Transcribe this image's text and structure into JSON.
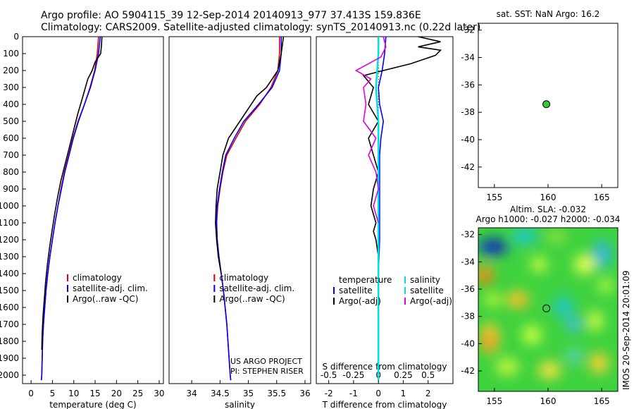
{
  "header": {
    "line1": "Argo profile: AO 5904115_39 12-Sep-2014 20140913_977 37.413S 159.836E",
    "line2": "Climatology: CARS2009. Satellite-adjusted climatology: synTS_20140913.nc (0.22d later)"
  },
  "colors": {
    "climatology": "#e00000",
    "satellite": "#0000ff",
    "argo": "#000000",
    "sal_satellite": "#00e0e0",
    "sal_argo": "#e000e0",
    "marker": "#33cc33"
  },
  "chart_data": [
    {
      "type": "line",
      "name": "temperature-panel",
      "xlabel": "temperature (deg C)",
      "ylabel": "",
      "xlim": [
        -2,
        31
      ],
      "ylim": [
        2050,
        0
      ],
      "xticks": [
        0,
        5,
        10,
        15,
        20,
        25,
        30
      ],
      "yticks": [
        0,
        100,
        200,
        300,
        400,
        500,
        600,
        700,
        800,
        900,
        1000,
        1100,
        1200,
        1300,
        1400,
        1500,
        1600,
        1700,
        1800,
        1900,
        2000
      ],
      "legend": [
        "climatology",
        "satellite-adj. clim.",
        "Argo(..raw -QC)"
      ],
      "series": [
        {
          "name": "climatology",
          "x": [
            15.8,
            15.5,
            14.9,
            13.8,
            12.5,
            11.0,
            9.8,
            8.8,
            7.8,
            7.0,
            6.3,
            5.6,
            5.0,
            4.4,
            3.9,
            3.5,
            3.2,
            2.9,
            2.7,
            2.6,
            2.5,
            2.4
          ],
          "y": [
            0,
            100,
            200,
            300,
            400,
            500,
            600,
            700,
            800,
            900,
            1000,
            1100,
            1200,
            1300,
            1400,
            1500,
            1600,
            1700,
            1800,
            1900,
            2000,
            2030
          ]
        },
        {
          "name": "satellite-adj. clim.",
          "x": [
            16.2,
            15.8,
            15.0,
            13.9,
            12.5,
            11.1,
            9.9,
            8.9,
            7.9,
            7.1,
            6.3,
            5.6,
            5.0,
            4.4,
            3.9,
            3.5,
            3.2,
            2.9,
            2.7,
            2.6,
            2.5,
            2.4
          ],
          "y": [
            0,
            100,
            200,
            300,
            400,
            500,
            600,
            700,
            800,
            900,
            1000,
            1100,
            1200,
            1300,
            1400,
            1500,
            1600,
            1700,
            1800,
            1900,
            2000,
            2030
          ]
        },
        {
          "name": "Argo(..raw -QC)",
          "x": [
            16.6,
            16.5,
            16.3,
            15.0,
            14.3,
            13.3,
            11.6,
            11.0,
            10.0,
            9.0,
            8.0,
            7.0,
            6.2,
            5.5,
            4.9,
            4.3,
            3.8,
            3.4,
            3.1,
            2.8,
            2.6,
            2.5
          ],
          "y": [
            0,
            50,
            100,
            150,
            200,
            250,
            400,
            450,
            550,
            650,
            750,
            850,
            950,
            1050,
            1150,
            1250,
            1350,
            1450,
            1550,
            1650,
            1750,
            1850
          ]
        }
      ]
    },
    {
      "type": "line",
      "name": "salinity-panel",
      "xlabel": "salinity",
      "xlim": [
        33.6,
        36.1
      ],
      "ylim": [
        2050,
        0
      ],
      "xticks": [
        34,
        34.5,
        35,
        35.5,
        36
      ],
      "xticklabels": [
        "34",
        "34.5",
        "35",
        "35.5",
        "36"
      ],
      "legend": [
        "climatology",
        "satellite-adj. clim.",
        "Argo(..raw -QC)"
      ],
      "annotation": [
        "US ARGO PROJECT",
        "PI: STEPHEN RISER"
      ],
      "series": [
        {
          "name": "climatology",
          "x": [
            35.55,
            35.55,
            35.52,
            35.4,
            35.2,
            34.95,
            34.78,
            34.62,
            34.55,
            34.5,
            34.46,
            34.44,
            34.45,
            34.48,
            34.52,
            34.56,
            34.59,
            34.62,
            34.64,
            34.66,
            34.68,
            34.69
          ],
          "y": [
            0,
            100,
            200,
            300,
            400,
            500,
            600,
            700,
            800,
            900,
            1000,
            1100,
            1200,
            1300,
            1400,
            1500,
            1600,
            1700,
            1800,
            1900,
            2000,
            2030
          ]
        },
        {
          "name": "satellite-adj. clim.",
          "x": [
            35.58,
            35.58,
            35.55,
            35.42,
            35.18,
            34.92,
            34.75,
            34.6,
            34.54,
            34.49,
            34.45,
            34.44,
            34.45,
            34.48,
            34.52,
            34.56,
            34.59,
            34.62,
            34.64,
            34.66,
            34.68,
            34.69
          ],
          "y": [
            0,
            100,
            200,
            300,
            400,
            500,
            600,
            700,
            800,
            900,
            1000,
            1100,
            1200,
            1300,
            1400,
            1500,
            1600,
            1700,
            1800,
            1900,
            2000,
            2030
          ]
        },
        {
          "name": "Argo(..raw -QC)",
          "x": [
            35.62,
            35.58,
            35.52,
            35.32,
            35.15,
            34.85,
            34.65,
            34.55,
            34.5,
            34.45,
            34.43,
            34.42,
            34.44,
            34.47,
            34.52
          ],
          "y": [
            0,
            100,
            200,
            300,
            350,
            500,
            600,
            700,
            800,
            900,
            1000,
            1100,
            1200,
            1300,
            1400
          ]
        }
      ]
    },
    {
      "type": "line",
      "name": "difference-panel",
      "xlabel": "T difference from climatology",
      "xlabel2": "S difference from climatology",
      "xlim": [
        -2.5,
        3
      ],
      "ylim": [
        2050,
        0
      ],
      "xticks": [
        -2,
        -1,
        0,
        1,
        2
      ],
      "xticks2": [
        "-0.5",
        "-0.25",
        "0",
        "0.25",
        "0.5"
      ],
      "legend": {
        "temperature_header": "temperature",
        "salinity_header": "salinity",
        "temperature": [
          "satellite",
          "Argo(-adj)"
        ],
        "salinity": [
          "satellite",
          "Argo(-adj)"
        ]
      },
      "series": [
        {
          "name": "T satellite",
          "x": [
            0.3,
            0.25,
            0.15,
            0.0,
            0.05,
            0.2,
            0.1,
            0.05,
            0.05,
            0.05,
            0.05,
            0.05,
            0.0
          ],
          "y": [
            0,
            100,
            200,
            300,
            400,
            500,
            600,
            700,
            800,
            900,
            1000,
            1200,
            1400
          ]
        },
        {
          "name": "T Argo(-adj)",
          "x": [
            1.6,
            2.5,
            1.6,
            2.5,
            2.3,
            1.3,
            0.2,
            -0.6,
            -0.2,
            -0.4,
            0.0,
            -0.4,
            -0.2,
            0.0,
            -0.2,
            -0.3,
            -0.2,
            -0.1,
            -0.2,
            -0.1,
            0.0,
            0.0
          ],
          "y": [
            0,
            30,
            60,
            80,
            110,
            160,
            200,
            230,
            300,
            400,
            500,
            600,
            700,
            800,
            900,
            1000,
            1050,
            1100,
            1150,
            1200,
            1300,
            1400
          ]
        },
        {
          "name": "S satellite",
          "x": [
            0.0,
            0.0,
            -0.05,
            -0.1,
            0.0,
            0.0,
            0.0,
            0.0
          ],
          "y": [
            0,
            100,
            200,
            300,
            500,
            1000,
            1500,
            2030
          ]
        },
        {
          "name": "S Argo(-adj)",
          "x": [
            0.2,
            0.3,
            0.1,
            -0.9,
            -0.3,
            -0.6,
            -0.5,
            -0.6,
            -0.1,
            -0.4,
            -0.1,
            0.0,
            -0.2,
            0.0
          ],
          "y": [
            0,
            60,
            120,
            200,
            250,
            300,
            400,
            500,
            600,
            700,
            800,
            900,
            1000,
            1100
          ]
        }
      ]
    },
    {
      "type": "scatter",
      "name": "location-map",
      "title": "sat. SST: NaN  Argo: 16.2",
      "xlim": [
        153.5,
        166.5
      ],
      "ylim": [
        -43.5,
        -31.5
      ],
      "xticks": [
        155,
        160,
        165
      ],
      "yticks": [
        -32,
        -34,
        -36,
        -38,
        -40,
        -42
      ],
      "points": [
        {
          "x": 159.84,
          "y": -37.41
        }
      ]
    },
    {
      "type": "heatmap",
      "name": "sla-map",
      "title": "Altim. SLA: -0.032",
      "title2": "Argo h1000: -0.027 h2000: -0.034",
      "xlim": [
        153.5,
        166.5
      ],
      "ylim": [
        -43.5,
        -31.5
      ],
      "xticks": [
        155,
        160,
        165
      ],
      "yticks": [
        -32,
        -34,
        -36,
        -38,
        -40,
        -42
      ],
      "side_label": "IMOS 20-Sep-2014 20:01:09",
      "points": [
        {
          "x": 159.84,
          "y": -37.41
        }
      ]
    }
  ]
}
